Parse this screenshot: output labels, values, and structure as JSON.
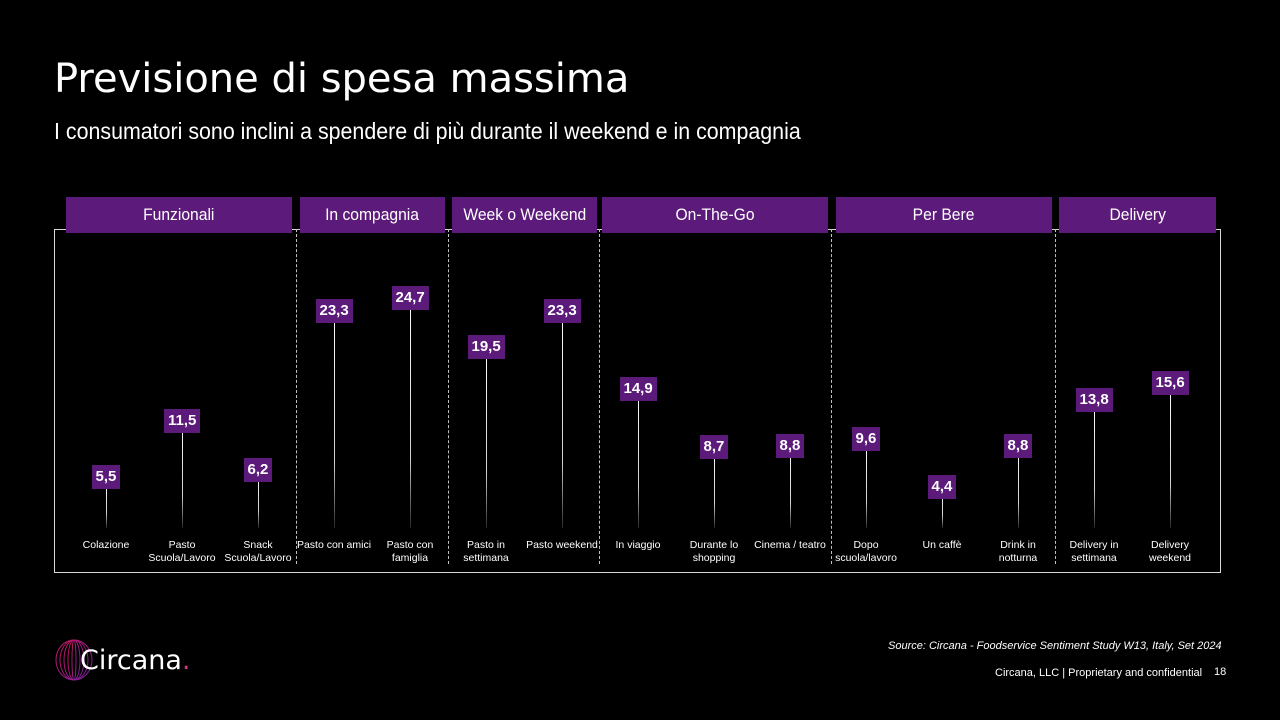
{
  "title": "Previsione di spesa massima",
  "subtitle": "I consumatori sono inclini a spendere di più durante il weekend e in compagnia",
  "groups": [
    {
      "label": "Funzionali"
    },
    {
      "label": "In compagnia"
    },
    {
      "label": "Week o Weekend"
    },
    {
      "label": "On-The-Go"
    },
    {
      "label": "Per Bere"
    },
    {
      "label": "Delivery"
    }
  ],
  "chart_data": {
    "type": "bar",
    "style": "lollipop",
    "categories": [
      "Colazione",
      "Pasto Scuola/Lavoro",
      "Snack Scuola/Lavoro",
      "Pasto con amici",
      "Pasto con famiglia",
      "Pasto in settimana",
      "Pasto weekend",
      "In viaggio",
      "Durante lo shopping",
      "Cinema / teatro",
      "Dopo scuola/lavoro",
      "Un caffè",
      "Drink in notturna",
      "Delivery in settimana",
      "Delivery weekend"
    ],
    "category_lines": [
      [
        "Colazione"
      ],
      [
        "Pasto",
        "Scuola/Lavoro"
      ],
      [
        "Snack",
        "Scuola/Lavoro"
      ],
      [
        "Pasto con amici"
      ],
      [
        "Pasto con",
        "famiglia"
      ],
      [
        "Pasto in",
        "settimana"
      ],
      [
        "Pasto weekend"
      ],
      [
        "In viaggio"
      ],
      [
        "Durante lo",
        "shopping"
      ],
      [
        "Cinema / teatro"
      ],
      [
        "Dopo",
        "scuola/lavoro"
      ],
      [
        "Un caffè"
      ],
      [
        "Drink in",
        "notturna"
      ],
      [
        "Delivery in",
        "settimana"
      ],
      [
        "Delivery",
        "weekend"
      ]
    ],
    "values": [
      5.5,
      11.5,
      6.2,
      23.3,
      24.7,
      19.5,
      23.3,
      14.9,
      8.7,
      8.8,
      9.6,
      4.4,
      8.8,
      13.8,
      15.6
    ],
    "value_labels": [
      "5,5",
      "11,5",
      "6,2",
      "23,3",
      "24,7",
      "19,5",
      "23,3",
      "14,9",
      "8,7",
      "8,8",
      "9,6",
      "4,4",
      "8,8",
      "13,8",
      "15,6"
    ],
    "group_sizes": [
      3,
      2,
      2,
      3,
      3,
      2
    ],
    "ylim": [
      0,
      26
    ],
    "title": "",
    "xlabel": "",
    "ylabel": "",
    "bar_color": "#5c1a7a"
  },
  "source": "Source: Circana  - Foodservice Sentiment Study W13, Italy, Set 2024",
  "footer": "Circana, LLC |  Proprietary and confidential",
  "page_number": "18",
  "logo": {
    "text": "Circana",
    "dot": ".",
    "dot_color": "#d63384",
    "ring_color": "#8a2be2"
  }
}
